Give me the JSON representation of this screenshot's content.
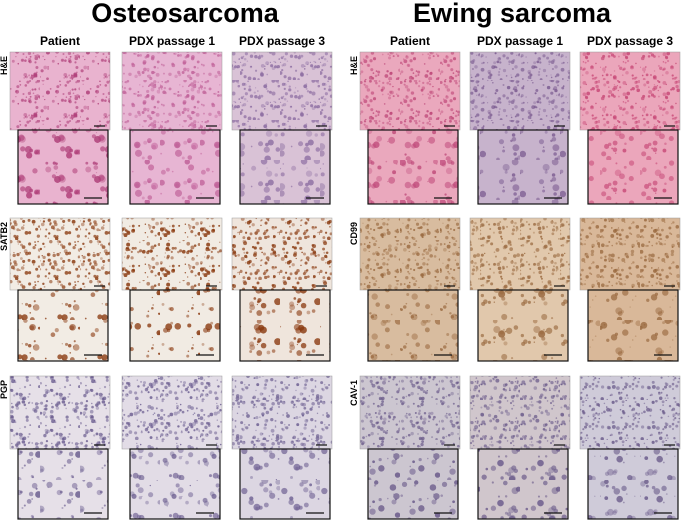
{
  "panels": [
    {
      "title": "Osteosarcoma",
      "columns": [
        "Patient",
        "PDX passage 1",
        "PDX passage 3"
      ],
      "rows": [
        "H&E",
        "SATB2",
        "PGP"
      ]
    },
    {
      "title": "Ewing sarcoma",
      "columns": [
        "Patient",
        "PDX passage 1",
        "PDX passage 3"
      ],
      "rows": [
        "H&E",
        "CD99",
        "CAV-1"
      ]
    }
  ]
}
